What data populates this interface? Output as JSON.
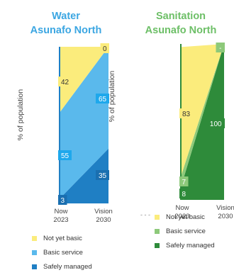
{
  "chart_data": [
    {
      "type": "area",
      "title": "Water",
      "subtitle": "Asunafo North",
      "ylabel": "% of population",
      "categories": [
        "Now\n2023",
        "Vision\n2030"
      ],
      "ylim": [
        0,
        100
      ],
      "stacked": true,
      "series": [
        {
          "name": "Safely managed",
          "values": [
            3,
            35
          ],
          "color": "#1F7FC4"
        },
        {
          "name": "Basic service",
          "values": [
            55,
            65
          ],
          "color": "#5AB9EC"
        },
        {
          "name": "Not yet basic",
          "values": [
            42,
            0
          ],
          "color": "#FBEC7C"
        }
      ],
      "data_labels": [
        {
          "series": "Not yet basic",
          "values": [
            "42",
            "0"
          ]
        },
        {
          "series": "Basic service",
          "values": [
            "55",
            "65"
          ]
        },
        {
          "series": "Safely managed",
          "values": [
            "3",
            "35"
          ]
        }
      ],
      "tick_labels": [
        {
          "top": "Now",
          "bottom": "2023"
        },
        {
          "top": "Vision",
          "bottom": "2030"
        }
      ],
      "legend": [
        "Not yet basic",
        "Basic service",
        "Safely managed"
      ],
      "legend_position": "bottom",
      "title_color": "#3BA6E2"
    },
    {
      "type": "area",
      "title": "Sanitation",
      "subtitle": "Asunafo North",
      "ylabel": "% of population",
      "categories": [
        "Now\n2023",
        "Vision\n2030"
      ],
      "ylim": [
        0,
        100
      ],
      "stacked": true,
      "series": [
        {
          "name": "Safely managed",
          "values": [
            8,
            100
          ],
          "color": "#2E8B3A"
        },
        {
          "name": "Basic service",
          "values": [
            7,
            0
          ],
          "color": "#8DC97A"
        },
        {
          "name": "Not yet basic",
          "values": [
            83,
            0
          ],
          "color": "#FBEC7C"
        }
      ],
      "data_labels": [
        {
          "series": "Not yet basic",
          "values": [
            "83",
            ""
          ]
        },
        {
          "series": "Basic service",
          "values": [
            "7",
            "-"
          ]
        },
        {
          "series": "Safely managed",
          "values": [
            "8",
            "100"
          ]
        }
      ],
      "tick_labels": [
        {
          "top": "Now",
          "bottom": "2023"
        },
        {
          "top": "Vision",
          "bottom": "2030"
        }
      ],
      "legend": [
        "Not yet basic",
        "Basic service",
        "Safely managed"
      ],
      "legend_position": "bottom",
      "title_color": "#6DBF67"
    }
  ]
}
